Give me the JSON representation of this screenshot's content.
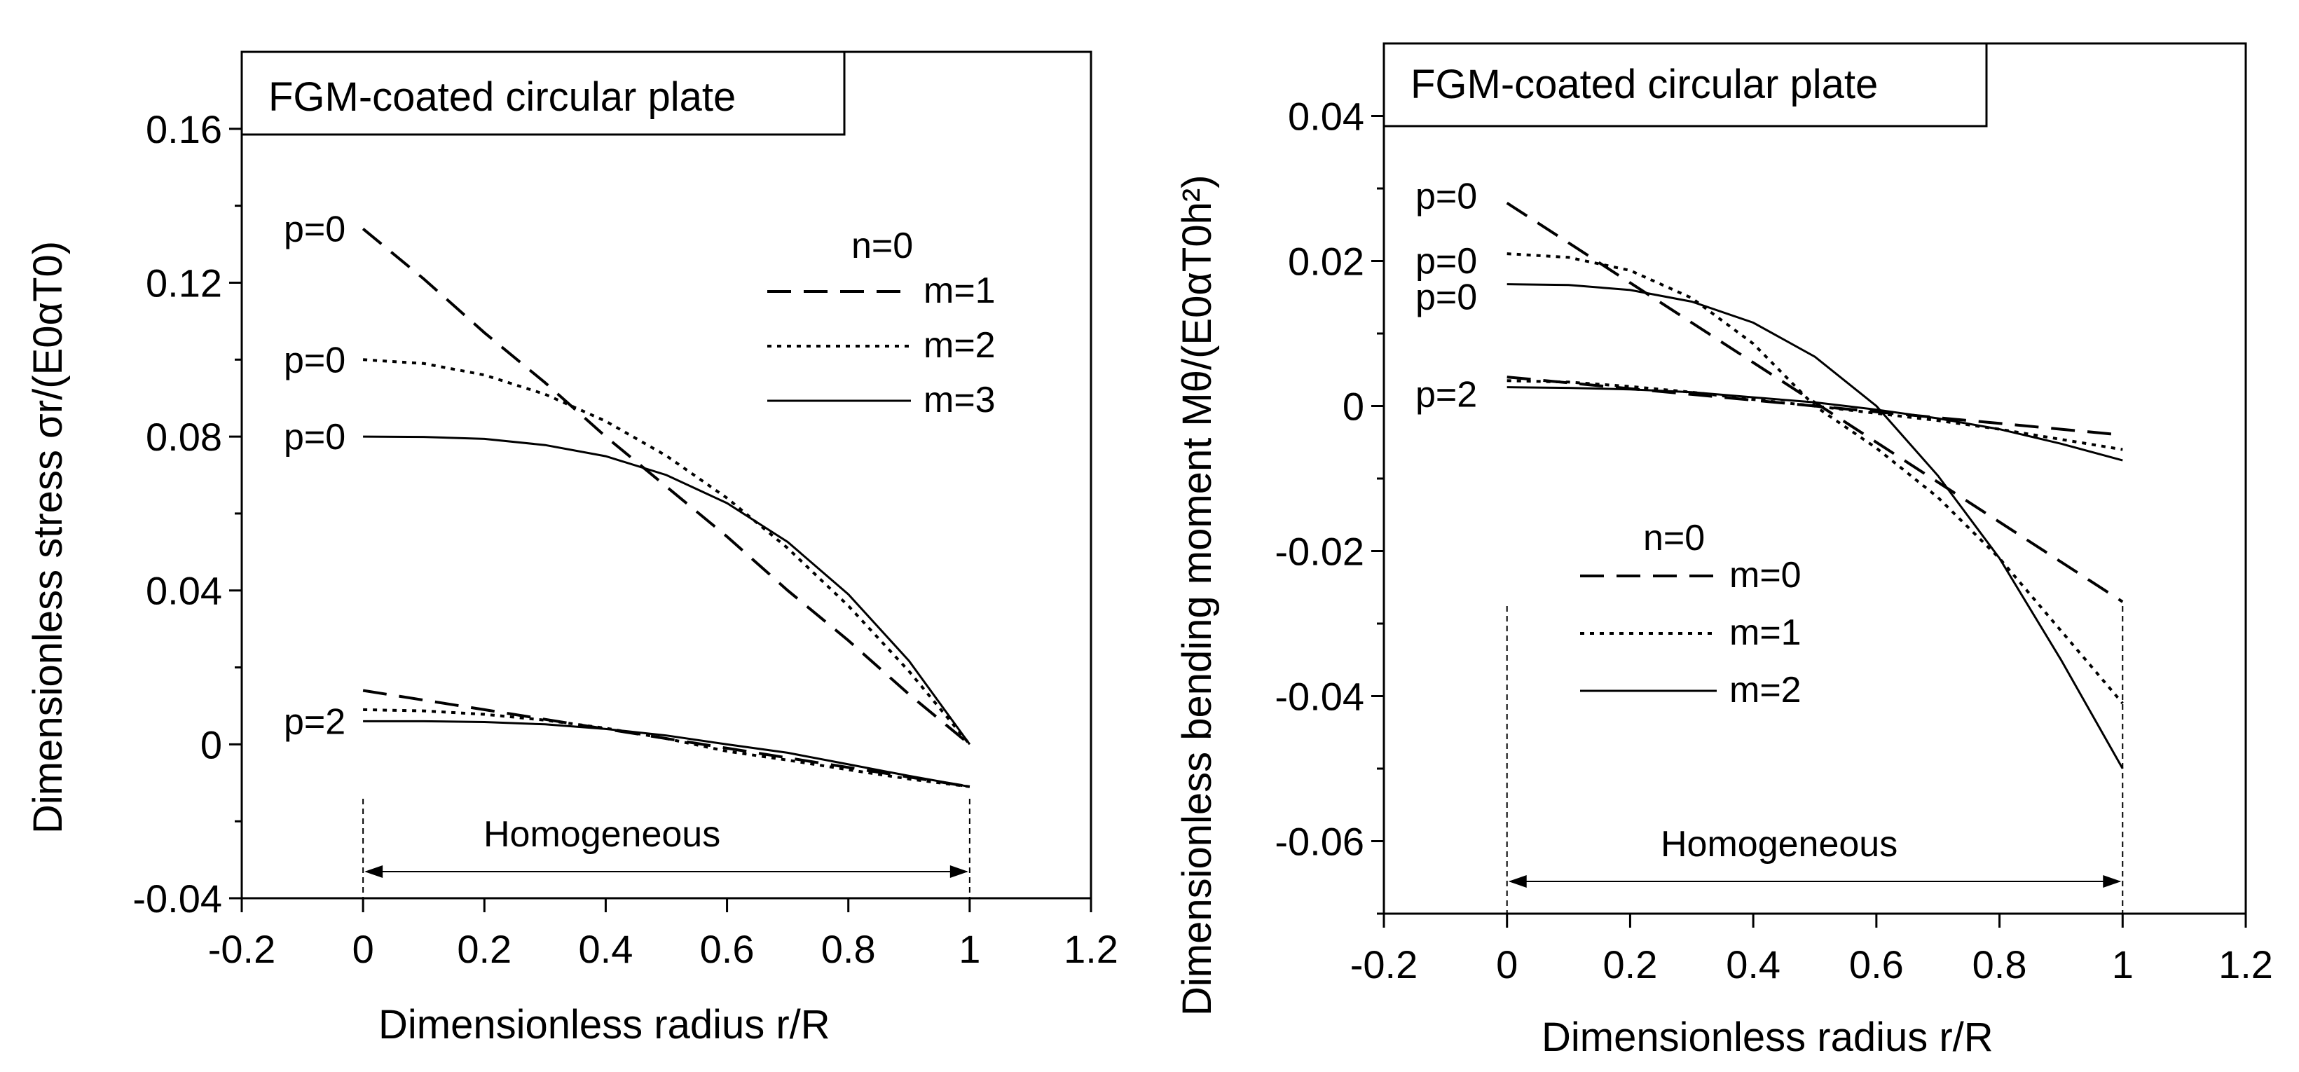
{
  "chart_data": [
    {
      "type": "line",
      "title": "FGM-coated circular plate",
      "xlabel": "Dimensionless radius  r/R",
      "ylabel": "Dimensionless stress σr/(E0αT0)",
      "xlim": [
        -0.2,
        1.2
      ],
      "ylim": [
        -0.04,
        0.18
      ],
      "xticks": [
        -0.2,
        0,
        0.2,
        0.4,
        0.6,
        0.8,
        1,
        1.2
      ],
      "xtick_labels": [
        "-0.2",
        "0",
        "0.2",
        "0.4",
        "0.6",
        "0.8",
        "1",
        "1.2"
      ],
      "yticks": [
        -0.04,
        0,
        0.04,
        0.08,
        0.12,
        0.16
      ],
      "ytick_labels": [
        "-0.04",
        "0",
        "0.04",
        "0.08",
        "0.12",
        "0.16"
      ],
      "legend_title": "n=0",
      "region_label": "Homogeneous",
      "series": [
        {
          "name": "m=1",
          "style": "dashed",
          "p": "p=0",
          "x": [
            0,
            0.1,
            0.2,
            0.3,
            0.4,
            0.5,
            0.6,
            0.7,
            0.8,
            0.9,
            1.0
          ],
          "values": [
            0.134,
            0.121,
            0.107,
            0.094,
            0.08,
            0.067,
            0.054,
            0.04,
            0.027,
            0.013,
            0.0
          ]
        },
        {
          "name": "m=2",
          "style": "dotted",
          "p": "p=0",
          "x": [
            0,
            0.1,
            0.2,
            0.3,
            0.4,
            0.5,
            0.6,
            0.7,
            0.8,
            0.9,
            1.0
          ],
          "values": [
            0.1,
            0.099,
            0.096,
            0.091,
            0.084,
            0.075,
            0.064,
            0.051,
            0.036,
            0.019,
            0.0
          ]
        },
        {
          "name": "m=3",
          "style": "solid",
          "p": "p=0",
          "x": [
            0,
            0.1,
            0.2,
            0.3,
            0.4,
            0.5,
            0.6,
            0.7,
            0.8,
            0.9,
            1.0
          ],
          "values": [
            0.08,
            0.0799,
            0.0794,
            0.0778,
            0.0749,
            0.07,
            0.0627,
            0.0526,
            0.039,
            0.0217,
            0.0
          ]
        },
        {
          "name": "m=1",
          "style": "dashed",
          "p": "p=2",
          "x": [
            0,
            0.1,
            0.2,
            0.3,
            0.4,
            0.5,
            0.6,
            0.7,
            0.8,
            0.9,
            1.0
          ],
          "values": [
            0.014,
            0.0115,
            0.009,
            0.0065,
            0.004,
            0.0015,
            -0.001,
            -0.0035,
            -0.006,
            -0.0085,
            -0.011
          ]
        },
        {
          "name": "m=2",
          "style": "dotted",
          "p": "p=2",
          "x": [
            0,
            0.1,
            0.2,
            0.3,
            0.4,
            0.5,
            0.6,
            0.7,
            0.8,
            0.9,
            1.0
          ],
          "values": [
            0.009,
            0.0087,
            0.0078,
            0.0063,
            0.0042,
            0.0015,
            -0.0018,
            -0.0041,
            -0.0066,
            -0.009,
            -0.011
          ]
        },
        {
          "name": "m=3",
          "style": "solid",
          "p": "p=2",
          "x": [
            0,
            0.1,
            0.2,
            0.3,
            0.4,
            0.5,
            0.6,
            0.7,
            0.8,
            0.9,
            1.0
          ],
          "values": [
            0.006,
            0.006,
            0.0058,
            0.0052,
            0.004,
            0.0023,
            0.0,
            -0.0022,
            -0.0052,
            -0.0082,
            -0.011
          ]
        }
      ],
      "curve_labels": [
        {
          "text": "p=0",
          "y": 0.134
        },
        {
          "text": "p=0",
          "y": 0.1
        },
        {
          "text": "p=0",
          "y": 0.08
        },
        {
          "text": "p=2",
          "y": 0.006
        }
      ]
    },
    {
      "type": "line",
      "title": "FGM-coated circular plate",
      "xlabel": "Dimensionless radius  r/R",
      "ylabel": "Dimensionless bending moment Mθ/(E0αT0h²)",
      "xlim": [
        -0.2,
        1.2
      ],
      "ylim": [
        -0.07,
        0.05
      ],
      "xticks": [
        -0.2,
        0,
        0.2,
        0.4,
        0.6,
        0.8,
        1,
        1.2
      ],
      "xtick_labels": [
        "-0.2",
        "0",
        "0.2",
        "0.4",
        "0.6",
        "0.8",
        "1",
        "1.2"
      ],
      "yticks": [
        -0.06,
        -0.04,
        -0.02,
        0,
        0.02,
        0.04
      ],
      "ytick_labels": [
        "-0.06",
        "-0.04",
        "-0.02",
        "0",
        "0.02",
        "0.04"
      ],
      "legend_title": "n=0",
      "region_label": "Homogeneous",
      "series": [
        {
          "name": "m=0",
          "style": "dashed",
          "p": "p=0",
          "x": [
            0,
            0.1,
            0.2,
            0.3,
            0.4,
            0.5,
            0.6,
            0.7,
            0.8,
            0.9,
            1.0
          ],
          "values": [
            0.028,
            0.0225,
            0.017,
            0.0115,
            0.006,
            0.0005,
            -0.005,
            -0.0105,
            -0.016,
            -0.0215,
            -0.027
          ]
        },
        {
          "name": "m=1",
          "style": "dotted",
          "p": "p=0",
          "x": [
            0,
            0.1,
            0.2,
            0.3,
            0.4,
            0.5,
            0.6,
            0.7,
            0.8,
            0.9,
            1.0
          ],
          "values": [
            0.021,
            0.0205,
            0.0187,
            0.0149,
            0.0086,
            0.0,
            -0.0058,
            -0.0126,
            -0.021,
            -0.031,
            -0.041
          ]
        },
        {
          "name": "m=2",
          "style": "solid",
          "p": "p=0",
          "x": [
            0,
            0.1,
            0.2,
            0.3,
            0.4,
            0.5,
            0.6,
            0.7,
            0.8,
            0.9,
            1.0
          ],
          "values": [
            0.0168,
            0.0167,
            0.016,
            0.0144,
            0.0115,
            0.0068,
            0.0,
            -0.0096,
            -0.021,
            -0.035,
            -0.05
          ]
        },
        {
          "name": "m=0",
          "style": "dashed",
          "p": "p=2",
          "x": [
            0,
            0.1,
            0.2,
            0.3,
            0.4,
            0.5,
            0.6,
            0.7,
            0.8,
            0.9,
            1.0
          ],
          "values": [
            0.004,
            0.0032,
            0.0024,
            0.0016,
            0.0008,
            0.0,
            -0.0008,
            -0.0016,
            -0.0024,
            -0.0032,
            -0.004
          ]
        },
        {
          "name": "m=1",
          "style": "dotted",
          "p": "p=2",
          "x": [
            0,
            0.1,
            0.2,
            0.3,
            0.4,
            0.5,
            0.6,
            0.7,
            0.8,
            0.9,
            1.0
          ],
          "values": [
            0.0035,
            0.0033,
            0.0027,
            0.0019,
            0.0009,
            0.0,
            -0.001,
            -0.002,
            -0.0032,
            -0.0046,
            -0.006
          ]
        },
        {
          "name": "m=2",
          "style": "solid",
          "p": "p=2",
          "x": [
            0,
            0.1,
            0.2,
            0.3,
            0.4,
            0.5,
            0.6,
            0.7,
            0.8,
            0.9,
            1.0
          ],
          "values": [
            0.0026,
            0.0025,
            0.0023,
            0.0019,
            0.0012,
            0.0005,
            -0.0005,
            -0.0017,
            -0.0032,
            -0.0052,
            -0.0075
          ]
        }
      ],
      "curve_labels": [
        {
          "text": "p=0",
          "y": 0.028
        },
        {
          "text": "p=0",
          "y": 0.021
        },
        {
          "text": "p=0",
          "y": 0.0168
        },
        {
          "text": "p=2",
          "y": 0.0026
        }
      ]
    }
  ]
}
